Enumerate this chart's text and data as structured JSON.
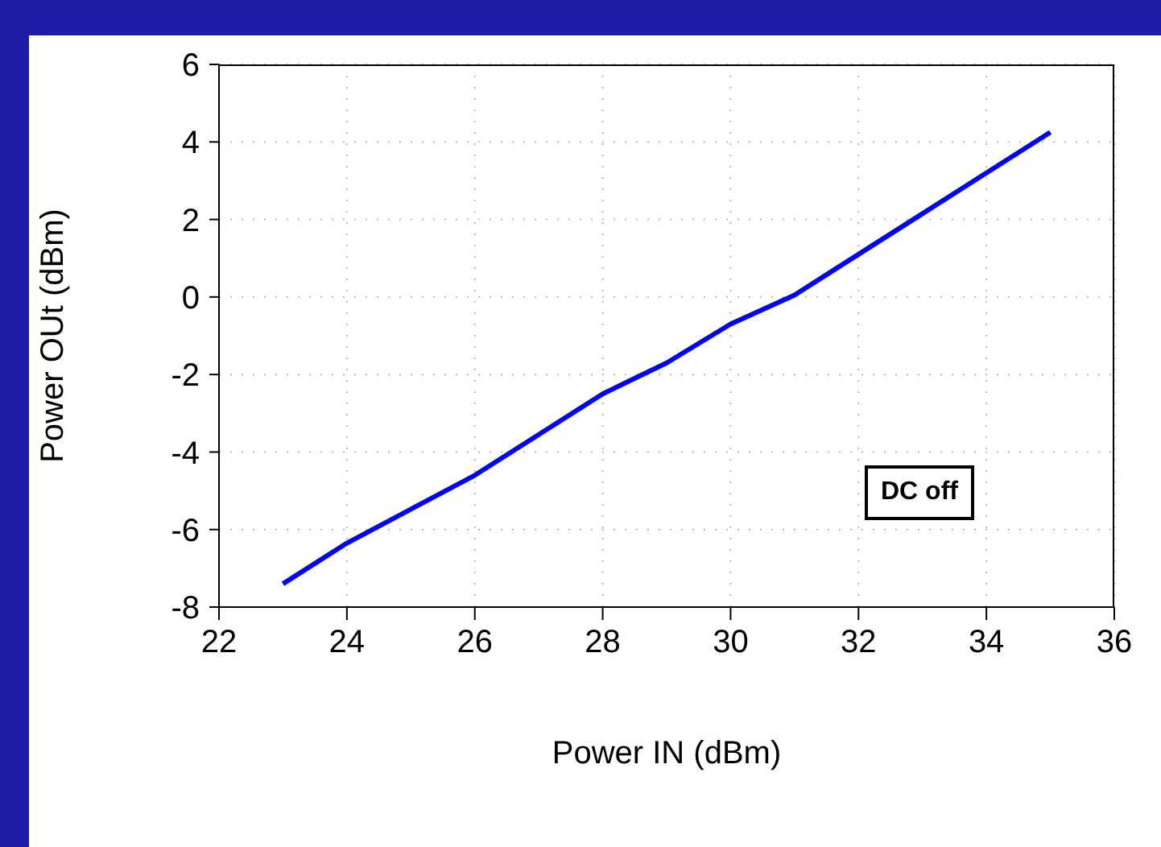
{
  "chart_data": {
    "type": "line",
    "xlabel": "Power IN (dBm)",
    "ylabel": "Power OUt (dBm)",
    "x": [
      23,
      24,
      26,
      27,
      28,
      29,
      30,
      31,
      32,
      33,
      34,
      35
    ],
    "series": [
      {
        "color": "#0000ff",
        "values": [
          -7.4,
          -6.35,
          -4.6,
          -3.55,
          -2.5,
          -1.7,
          -0.7,
          0.05,
          1.1,
          2.15,
          3.2,
          4.25
        ]
      }
    ],
    "xlim": [
      22,
      36
    ],
    "xticks": [
      22,
      24,
      26,
      28,
      30,
      32,
      34,
      36
    ],
    "ylim": [
      -8,
      6
    ],
    "yticks": [
      -8,
      -6,
      -4,
      -2,
      0,
      2,
      4,
      6
    ],
    "grid": true,
    "legend": false,
    "marker": "none",
    "line_style": "solid",
    "annotations": [
      "DC off"
    ]
  }
}
